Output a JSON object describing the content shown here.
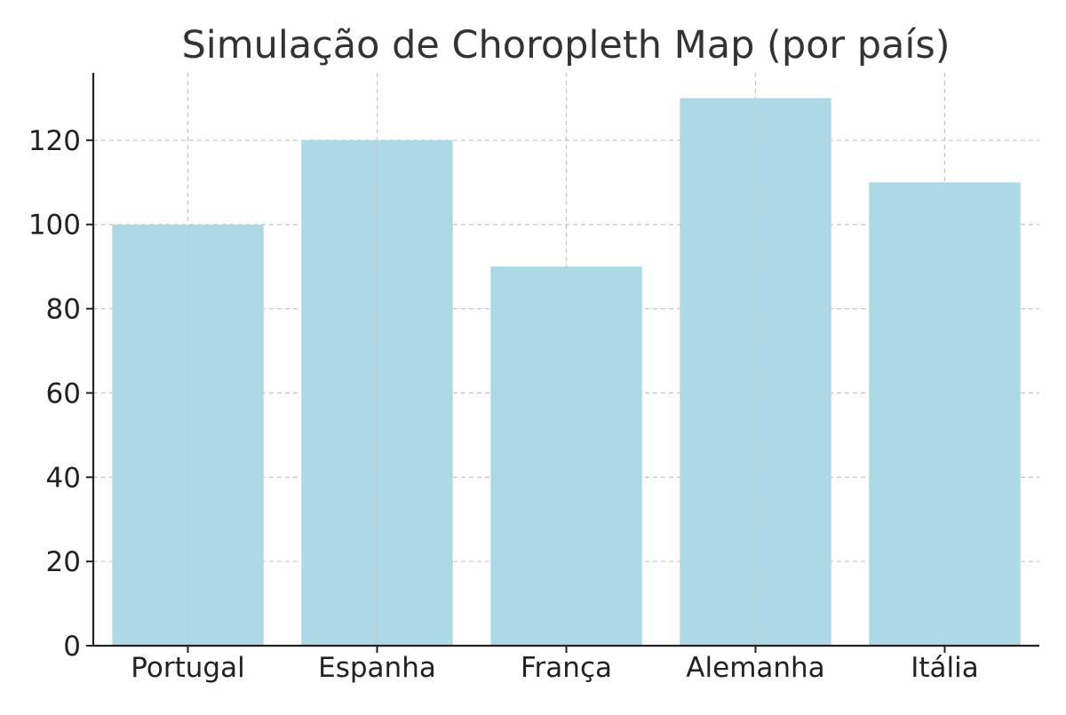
{
  "chart_data": {
    "type": "bar",
    "title": "Simulação de Choropleth Map (por país)",
    "xlabel": "",
    "ylabel": "",
    "categories": [
      "Portugal",
      "Espanha",
      "França",
      "Alemanha",
      "Itália"
    ],
    "values": [
      100,
      120,
      90,
      130,
      110
    ],
    "ylim": [
      0,
      136
    ],
    "yticks": [
      0,
      20,
      40,
      60,
      80,
      100,
      120
    ],
    "ytick_labels": [
      "0",
      "20",
      "40",
      "60",
      "80",
      "100",
      "120"
    ],
    "grid": true,
    "legend": "none",
    "colors": {
      "bar": "#add8e6",
      "grid": "#c8c8c8",
      "axis": "#222222",
      "title": "#333333"
    }
  }
}
